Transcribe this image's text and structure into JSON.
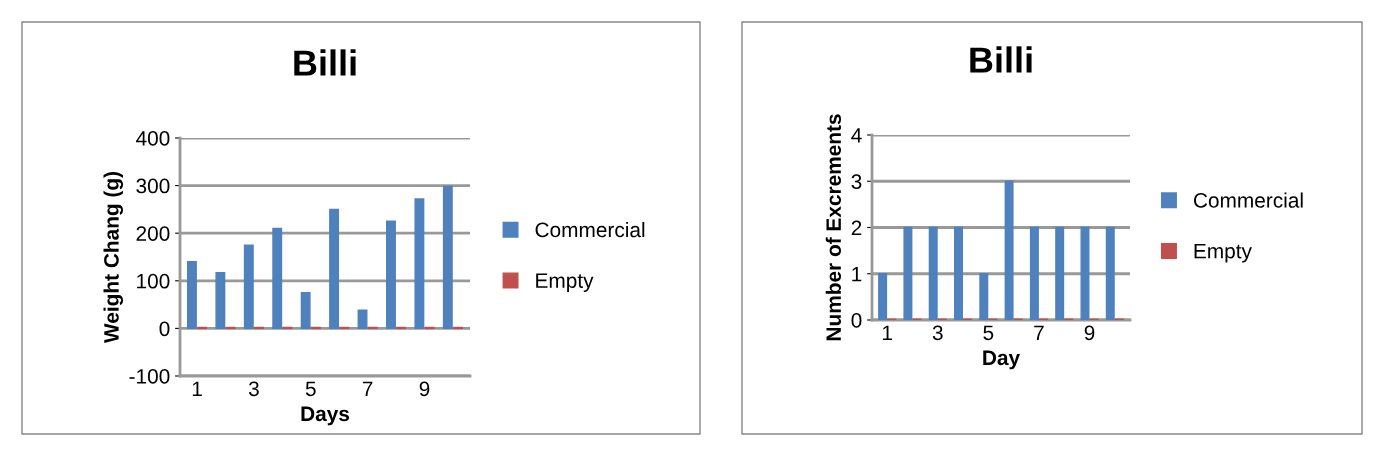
{
  "chart_data": [
    {
      "type": "bar",
      "title": "Billi",
      "xlabel": "Days",
      "ylabel": "Weight Chang (g)",
      "categories": [
        "1",
        null,
        "3",
        null,
        "5",
        null,
        "7",
        null,
        "9",
        null
      ],
      "series": [
        {
          "name": "Commercial",
          "color": "#4f81bd",
          "values": [
            140,
            117,
            175,
            210,
            75,
            250,
            38,
            225,
            272,
            298
          ]
        },
        {
          "name": "Empty",
          "color": "#c0504d",
          "values": [
            0,
            0,
            0,
            0,
            0,
            0,
            0,
            0,
            0,
            0
          ]
        }
      ],
      "ylim": [
        -100,
        400
      ],
      "yticks": [
        -100,
        0,
        100,
        200,
        300,
        400
      ],
      "grid": "y",
      "legend": "right"
    },
    {
      "type": "bar",
      "title": "Billi",
      "xlabel": "Day",
      "ylabel": "Number of Excrements",
      "categories": [
        "1",
        null,
        "3",
        null,
        "5",
        null,
        "7",
        null,
        "9",
        null
      ],
      "series": [
        {
          "name": "Commercial",
          "color": "#4f81bd",
          "values": [
            1,
            2,
            2,
            2,
            1,
            3,
            2,
            2,
            2,
            2
          ]
        },
        {
          "name": "Empty",
          "color": "#c0504d",
          "values": [
            0,
            0,
            0,
            0,
            0,
            0,
            0,
            0,
            0,
            0
          ]
        }
      ],
      "ylim": [
        0,
        4
      ],
      "yticks": [
        0,
        1,
        2,
        3,
        4
      ],
      "grid": "y",
      "legend": "right"
    }
  ]
}
